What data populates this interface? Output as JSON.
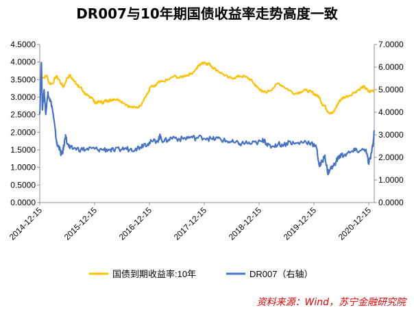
{
  "chart_data": {
    "type": "line",
    "title": "DR007与10年期国债收益率走势高度一致",
    "source": "资料来源：Wind，苏宁金融研究院",
    "x_tick_labels": [
      "2014-12-15",
      "2015-12-15",
      "2016-12-15",
      "2017-12-15",
      "2018-12-15",
      "2019-12-15",
      "2020-12-15"
    ],
    "x_range": [
      2014.95,
      2021.05
    ],
    "left_axis": {
      "ylim": [
        0,
        4.5
      ],
      "tick_values": [
        0,
        0.5,
        1.0,
        1.5,
        2.0,
        2.5,
        3.0,
        3.5,
        4.0,
        4.5
      ],
      "tick_labels": [
        "0.0000",
        "0.5000",
        "1.0000",
        "1.5000",
        "2.0000",
        "2.5000",
        "3.0000",
        "3.5000",
        "4.0000",
        "4.5000"
      ]
    },
    "right_axis": {
      "ylim": [
        0,
        7
      ],
      "tick_values": [
        0,
        1,
        2,
        3,
        4,
        5,
        6,
        7
      ],
      "tick_labels": [
        "0.0000",
        "1.0000",
        "2.0000",
        "3.0000",
        "4.0000",
        "5.0000",
        "6.0000",
        "7.0000"
      ]
    },
    "series": [
      {
        "name": "国债到期收益率:10年",
        "axis": "left",
        "color": "#FFC000",
        "points": [
          [
            2014.95,
            3.62
          ],
          [
            2015.02,
            3.55
          ],
          [
            2015.08,
            3.62
          ],
          [
            2015.12,
            3.4
          ],
          [
            2015.18,
            3.38
          ],
          [
            2015.25,
            3.6
          ],
          [
            2015.3,
            3.5
          ],
          [
            2015.38,
            3.28
          ],
          [
            2015.45,
            3.55
          ],
          [
            2015.5,
            3.62
          ],
          [
            2015.55,
            3.5
          ],
          [
            2015.6,
            3.45
          ],
          [
            2015.65,
            3.3
          ],
          [
            2015.7,
            3.28
          ],
          [
            2015.75,
            3.15
          ],
          [
            2015.8,
            3.05
          ],
          [
            2015.85,
            3.02
          ],
          [
            2015.9,
            3.0
          ],
          [
            2015.95,
            2.85
          ],
          [
            2016.0,
            2.85
          ],
          [
            2016.05,
            2.88
          ],
          [
            2016.1,
            2.84
          ],
          [
            2016.15,
            2.9
          ],
          [
            2016.2,
            2.9
          ],
          [
            2016.25,
            2.92
          ],
          [
            2016.3,
            2.95
          ],
          [
            2016.4,
            2.92
          ],
          [
            2016.5,
            2.82
          ],
          [
            2016.6,
            2.72
          ],
          [
            2016.7,
            2.7
          ],
          [
            2016.78,
            2.75
          ],
          [
            2016.85,
            2.95
          ],
          [
            2016.92,
            3.1
          ],
          [
            2016.97,
            3.3
          ],
          [
            2017.05,
            3.3
          ],
          [
            2017.1,
            3.4
          ],
          [
            2017.2,
            3.45
          ],
          [
            2017.3,
            3.5
          ],
          [
            2017.4,
            3.6
          ],
          [
            2017.5,
            3.55
          ],
          [
            2017.6,
            3.62
          ],
          [
            2017.7,
            3.65
          ],
          [
            2017.8,
            3.8
          ],
          [
            2017.85,
            3.9
          ],
          [
            2017.9,
            3.95
          ],
          [
            2017.95,
            4.0
          ],
          [
            2018.0,
            3.95
          ],
          [
            2018.05,
            3.95
          ],
          [
            2018.1,
            3.85
          ],
          [
            2018.2,
            3.75
          ],
          [
            2018.3,
            3.65
          ],
          [
            2018.4,
            3.55
          ],
          [
            2018.5,
            3.55
          ],
          [
            2018.6,
            3.6
          ],
          [
            2018.7,
            3.58
          ],
          [
            2018.8,
            3.5
          ],
          [
            2018.85,
            3.4
          ],
          [
            2018.9,
            3.3
          ],
          [
            2018.95,
            3.25
          ],
          [
            2019.0,
            3.15
          ],
          [
            2019.1,
            3.15
          ],
          [
            2019.2,
            3.25
          ],
          [
            2019.3,
            3.4
          ],
          [
            2019.4,
            3.3
          ],
          [
            2019.5,
            3.2
          ],
          [
            2019.6,
            3.1
          ],
          [
            2019.7,
            3.15
          ],
          [
            2019.8,
            3.2
          ],
          [
            2019.9,
            3.15
          ],
          [
            2019.95,
            3.1
          ],
          [
            2020.0,
            3.05
          ],
          [
            2020.05,
            3.0
          ],
          [
            2020.1,
            2.8
          ],
          [
            2020.15,
            2.75
          ],
          [
            2020.2,
            2.6
          ],
          [
            2020.25,
            2.55
          ],
          [
            2020.3,
            2.55
          ],
          [
            2020.35,
            2.7
          ],
          [
            2020.4,
            2.85
          ],
          [
            2020.45,
            2.95
          ],
          [
            2020.5,
            3.0
          ],
          [
            2020.6,
            3.05
          ],
          [
            2020.7,
            3.15
          ],
          [
            2020.8,
            3.25
          ],
          [
            2020.85,
            3.3
          ],
          [
            2020.9,
            3.25
          ],
          [
            2020.95,
            3.15
          ],
          [
            2021.0,
            3.18
          ],
          [
            2021.05,
            3.2
          ]
        ]
      },
      {
        "name": "DR007（右轴）",
        "axis": "right",
        "color": "#4472C4",
        "points": [
          [
            2014.95,
            3.9
          ],
          [
            2014.98,
            6.2
          ],
          [
            2015.0,
            4.1
          ],
          [
            2015.03,
            5.0
          ],
          [
            2015.06,
            3.9
          ],
          [
            2015.1,
            4.9
          ],
          [
            2015.13,
            4.6
          ],
          [
            2015.17,
            4.3
          ],
          [
            2015.2,
            3.8
          ],
          [
            2015.24,
            3.0
          ],
          [
            2015.27,
            2.5
          ],
          [
            2015.3,
            2.5
          ],
          [
            2015.33,
            2.2
          ],
          [
            2015.36,
            2.15
          ],
          [
            2015.39,
            2.5
          ],
          [
            2015.42,
            3.0
          ],
          [
            2015.45,
            2.6
          ],
          [
            2015.5,
            2.4
          ],
          [
            2015.6,
            2.4
          ],
          [
            2015.7,
            2.35
          ],
          [
            2015.8,
            2.35
          ],
          [
            2015.9,
            2.4
          ],
          [
            2016.0,
            2.35
          ],
          [
            2016.1,
            2.35
          ],
          [
            2016.2,
            2.35
          ],
          [
            2016.3,
            2.3
          ],
          [
            2016.4,
            2.35
          ],
          [
            2016.5,
            2.4
          ],
          [
            2016.6,
            2.35
          ],
          [
            2016.7,
            2.4
          ],
          [
            2016.78,
            2.45
          ],
          [
            2016.85,
            2.6
          ],
          [
            2016.92,
            2.6
          ],
          [
            2017.0,
            2.7
          ],
          [
            2017.1,
            2.75
          ],
          [
            2017.15,
            2.95
          ],
          [
            2017.2,
            2.7
          ],
          [
            2017.3,
            2.8
          ],
          [
            2017.4,
            2.9
          ],
          [
            2017.5,
            2.8
          ],
          [
            2017.6,
            2.85
          ],
          [
            2017.7,
            2.9
          ],
          [
            2017.8,
            2.85
          ],
          [
            2017.9,
            2.9
          ],
          [
            2018.0,
            2.85
          ],
          [
            2018.1,
            2.8
          ],
          [
            2018.2,
            2.85
          ],
          [
            2018.3,
            2.75
          ],
          [
            2018.4,
            2.7
          ],
          [
            2018.5,
            2.65
          ],
          [
            2018.6,
            2.6
          ],
          [
            2018.7,
            2.65
          ],
          [
            2018.8,
            2.6
          ],
          [
            2018.9,
            2.65
          ],
          [
            2019.0,
            2.7
          ],
          [
            2019.05,
            2.8
          ],
          [
            2019.1,
            2.5
          ],
          [
            2019.2,
            2.5
          ],
          [
            2019.3,
            2.6
          ],
          [
            2019.4,
            2.55
          ],
          [
            2019.5,
            2.7
          ],
          [
            2019.6,
            2.6
          ],
          [
            2019.7,
            2.65
          ],
          [
            2019.8,
            2.7
          ],
          [
            2019.9,
            2.65
          ],
          [
            2020.0,
            2.4
          ],
          [
            2020.05,
            1.6
          ],
          [
            2020.1,
            1.8
          ],
          [
            2020.15,
            2.1
          ],
          [
            2020.2,
            1.3
          ],
          [
            2020.25,
            1.5
          ],
          [
            2020.3,
            1.6
          ],
          [
            2020.35,
            1.8
          ],
          [
            2020.4,
            2.0
          ],
          [
            2020.45,
            2.1
          ],
          [
            2020.5,
            2.1
          ],
          [
            2020.6,
            2.2
          ],
          [
            2020.7,
            2.3
          ],
          [
            2020.8,
            2.3
          ],
          [
            2020.9,
            2.35
          ],
          [
            2020.95,
            1.7
          ],
          [
            2021.0,
            2.2
          ],
          [
            2021.03,
            2.6
          ],
          [
            2021.05,
            3.2
          ]
        ]
      }
    ],
    "legend_position": "bottom-center"
  },
  "colors": {
    "axis": "#8c8c8c",
    "text": "#000000",
    "source": "#e60000"
  }
}
